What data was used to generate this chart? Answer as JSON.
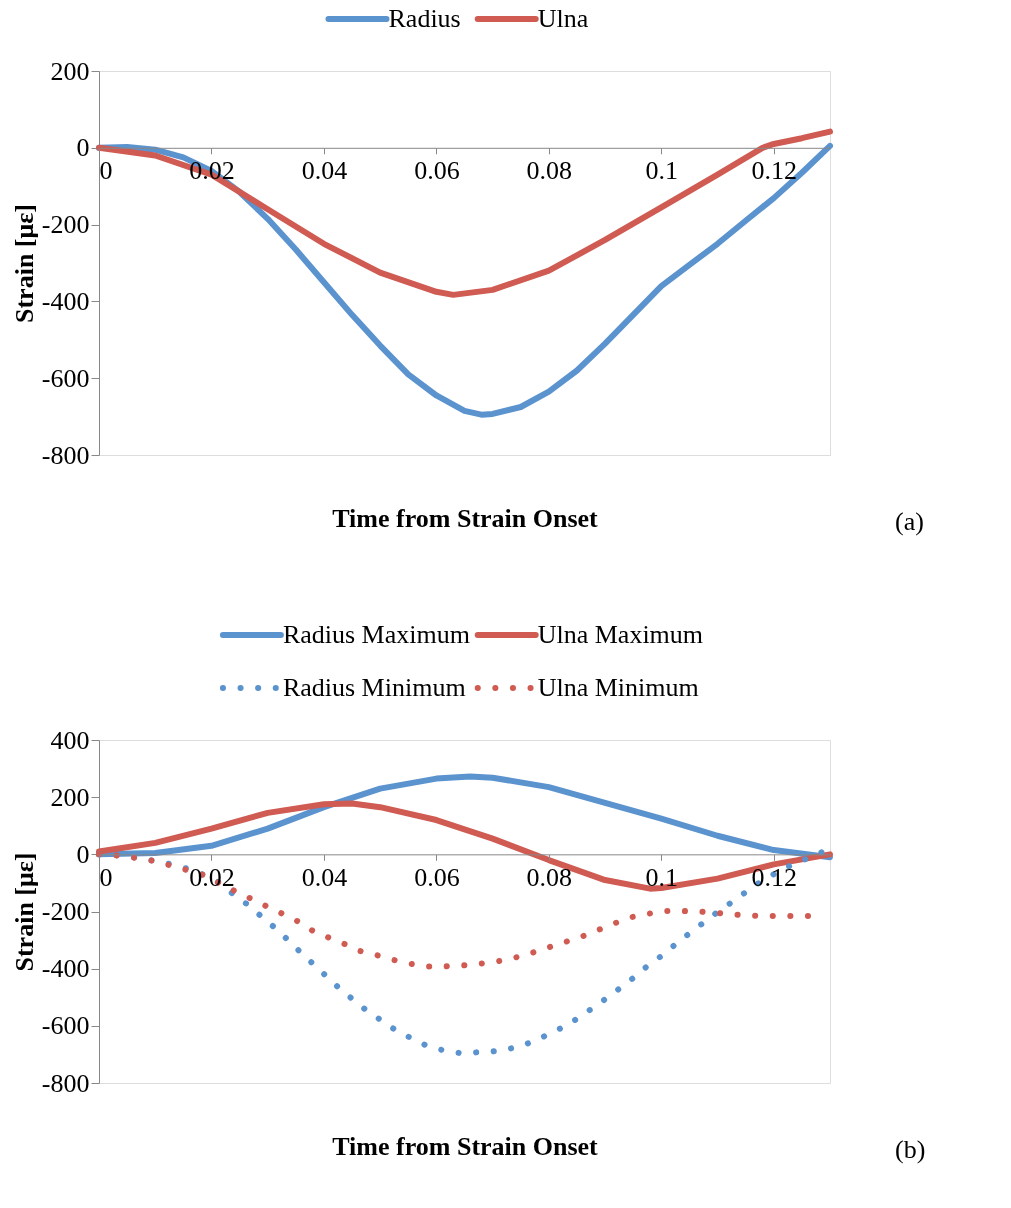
{
  "chart_data": [
    {
      "type": "line",
      "xlabel": "Time from Strain Onset",
      "ylabel": "Strain [με]",
      "xlim": [
        0,
        0.13
      ],
      "xticks": [
        0,
        0.02,
        0.04,
        0.06,
        0.08,
        0.1,
        0.12
      ],
      "ylim": [
        -800,
        200
      ],
      "yticks": [
        -800,
        -600,
        -400,
        -200,
        0,
        200
      ],
      "grid": false,
      "legend": "top",
      "marker": "none",
      "annotations": [
        "(a)"
      ],
      "series": [
        {
          "name": "Radius",
          "color": "#5b93ce",
          "line_style": "solid",
          "x": [
            0,
            0.005,
            0.01,
            0.015,
            0.02,
            0.025,
            0.03,
            0.035,
            0.04,
            0.045,
            0.05,
            0.055,
            0.06,
            0.065,
            0.068,
            0.07,
            0.075,
            0.08,
            0.085,
            0.09,
            0.095,
            0.1,
            0.105,
            0.11,
            0.115,
            0.12,
            0.125,
            0.13
          ],
          "values": [
            0,
            2,
            -5,
            -25,
            -60,
            -115,
            -185,
            -265,
            -350,
            -435,
            -515,
            -590,
            -645,
            -685,
            -695,
            -693,
            -675,
            -635,
            -580,
            -510,
            -435,
            -360,
            -305,
            -250,
            -190,
            -131,
            -65,
            5
          ]
        },
        {
          "name": "Ulna",
          "color": "#cf5b52",
          "line_style": "solid",
          "x": [
            0,
            0.01,
            0.02,
            0.03,
            0.04,
            0.05,
            0.06,
            0.063,
            0.07,
            0.08,
            0.09,
            0.1,
            0.11,
            0.118,
            0.12,
            0.125,
            0.13
          ],
          "values": [
            0,
            -20,
            -70,
            -160,
            -250,
            -325,
            -375,
            -383,
            -370,
            -320,
            -240,
            -155,
            -70,
            0,
            10,
            25,
            42
          ]
        }
      ]
    },
    {
      "type": "line",
      "xlabel": "Time from Strain Onset",
      "ylabel": "Strain [με]",
      "xlim": [
        0,
        0.13
      ],
      "xticks": [
        0,
        0.02,
        0.04,
        0.06,
        0.08,
        0.1,
        0.12
      ],
      "ylim": [
        -800,
        400
      ],
      "yticks": [
        -800,
        -600,
        -400,
        -200,
        0,
        200,
        400
      ],
      "grid": false,
      "legend": "top",
      "marker": "none",
      "annotations": [
        "(b)"
      ],
      "series": [
        {
          "name": "Radius Maximum",
          "color": "#5b93ce",
          "line_style": "solid",
          "x": [
            0,
            0.01,
            0.02,
            0.03,
            0.04,
            0.05,
            0.06,
            0.066,
            0.07,
            0.08,
            0.09,
            0.1,
            0.11,
            0.12,
            0.13
          ],
          "values": [
            0,
            5,
            30,
            90,
            165,
            230,
            265,
            272,
            268,
            235,
            180,
            125,
            65,
            15,
            -10
          ]
        },
        {
          "name": "Ulna Maximum",
          "color": "#cf5b52",
          "line_style": "solid",
          "x": [
            0,
            0.01,
            0.02,
            0.03,
            0.04,
            0.045,
            0.05,
            0.06,
            0.07,
            0.08,
            0.09,
            0.098,
            0.1,
            0.11,
            0.12,
            0.13
          ],
          "values": [
            10,
            40,
            90,
            145,
            175,
            178,
            165,
            120,
            55,
            -20,
            -90,
            -120,
            -118,
            -85,
            -35,
            0
          ]
        },
        {
          "name": "Radius Minimum",
          "color": "#5b93ce",
          "line_style": "dotted",
          "x": [
            0,
            0.0035,
            0.0065,
            0.0096,
            0.0127,
            0.0157,
            0.0186,
            0.0215,
            0.0239,
            0.0263,
            0.0287,
            0.0311,
            0.0334,
            0.0357,
            0.0381,
            0.0404,
            0.0428,
            0.0453,
            0.0477,
            0.0503,
            0.0528,
            0.0554,
            0.0583,
            0.0613,
            0.0644,
            0.0678,
            0.0709,
            0.074,
            0.0771,
            0.0799,
            0.0828,
            0.0856,
            0.0882,
            0.0908,
            0.0932,
            0.0957,
            0.0979,
            0.1006,
            0.103,
            0.1056,
            0.1081,
            0.1108,
            0.1133,
            0.1158,
            0.1183,
            0.1209,
            0.1237,
            0.1268,
            0.1295
          ],
          "values": [
            0,
            -4,
            -12,
            -22,
            -34,
            -50,
            -72,
            -100,
            -140,
            -174,
            -214,
            -254,
            -296,
            -340,
            -384,
            -426,
            -470,
            -510,
            -548,
            -582,
            -616,
            -642,
            -670,
            -686,
            -696,
            -692,
            -688,
            -676,
            -656,
            -630,
            -602,
            -568,
            -532,
            -496,
            -460,
            -422,
            -384,
            -348,
            -306,
            -268,
            -230,
            -190,
            -158,
            -120,
            -88,
            -60,
            -32,
            -8,
            16
          ]
        },
        {
          "name": "Ulna Minimum",
          "color": "#cf5b52",
          "line_style": "dotted",
          "x": [
            0,
            0.0033,
            0.0063,
            0.0095,
            0.0126,
            0.0155,
            0.0186,
            0.0213,
            0.0241,
            0.0269,
            0.0298,
            0.0324,
            0.0353,
            0.0379,
            0.0407,
            0.0435,
            0.0464,
            0.0493,
            0.0521,
            0.0551,
            0.0583,
            0.0613,
            0.0641,
            0.0674,
            0.0705,
            0.0735,
            0.0765,
            0.0796,
            0.0827,
            0.0856,
            0.0886,
            0.0916,
            0.0946,
            0.0976,
            0.1006,
            0.1036,
            0.1065,
            0.1095,
            0.1124,
            0.1155,
            0.1185,
            0.1215,
            0.1244,
            0.1272
          ],
          "values": [
            0,
            -4,
            -12,
            -22,
            -38,
            -54,
            -72,
            -100,
            -128,
            -154,
            -182,
            -206,
            -234,
            -266,
            -290,
            -312,
            -338,
            -352,
            -368,
            -382,
            -392,
            -392,
            -390,
            -384,
            -376,
            -364,
            -348,
            -328,
            -308,
            -290,
            -266,
            -242,
            -220,
            -208,
            -198,
            -198,
            -200,
            -204,
            -210,
            -214,
            -216,
            -216,
            -216,
            -216
          ]
        }
      ]
    }
  ]
}
